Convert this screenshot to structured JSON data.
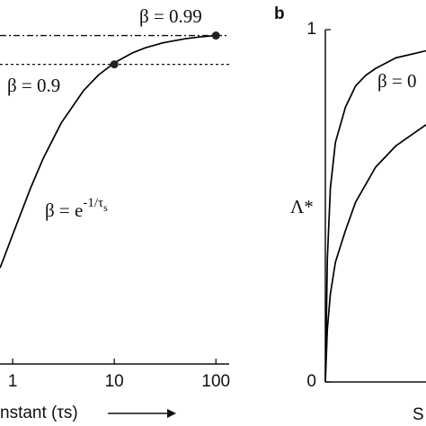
{
  "chart_data": [
    {
      "type": "line",
      "xlabel": "nstant (τs)",
      "xscale": "log",
      "xlim": [
        0.75,
        135
      ],
      "xticks": [
        1,
        10,
        100
      ],
      "ylim": [
        0,
        1
      ],
      "annotations": [
        "β = 0.99",
        "β = 0.9"
      ],
      "formula": {
        "text": "β = e",
        "superscript": "-1/τ",
        "subscript": "s"
      },
      "hlines": [
        {
          "value": 0.99,
          "style": "dashdot"
        },
        {
          "value": 0.9,
          "style": "dotted"
        }
      ],
      "points": {
        "x": [
          10,
          100
        ],
        "values": [
          0.9,
          0.99
        ],
        "color": "#222222"
      },
      "x": [
        0.75,
        0.8,
        1,
        1.5,
        2,
        3,
        5,
        7,
        10,
        15,
        20,
        30,
        50,
        70,
        100
      ],
      "series": [
        {
          "color": "#000000",
          "values": [
            0.2636,
            0.2865,
            0.3679,
            0.5134,
            0.6065,
            0.7165,
            0.8187,
            0.8669,
            0.9048,
            0.9355,
            0.9512,
            0.9672,
            0.9802,
            0.9858,
            0.99
          ]
        }
      ]
    },
    {
      "type": "line",
      "panel": "b",
      "xlabel": "S",
      "ylabel": "Λ*",
      "xlim": [
        0,
        1
      ],
      "ylim": [
        0,
        1
      ],
      "yticks": [
        0,
        1
      ],
      "annotations": [
        "β = 0"
      ],
      "x": [
        0,
        0.02,
        0.05,
        0.1,
        0.2,
        0.3,
        0.4,
        0.5,
        0.7,
        1.0
      ],
      "series": [
        {
          "color": "#000000",
          "values": [
            0,
            0.35,
            0.55,
            0.68,
            0.78,
            0.84,
            0.87,
            0.89,
            0.92,
            0.94
          ]
        },
        {
          "color": "#000000",
          "values": [
            0,
            0.15,
            0.25,
            0.34,
            0.43,
            0.51,
            0.56,
            0.61,
            0.67,
            0.73
          ]
        }
      ]
    }
  ]
}
